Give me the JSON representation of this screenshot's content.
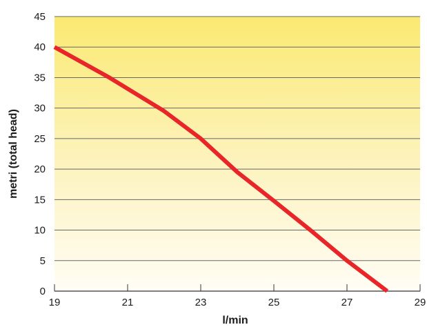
{
  "chart_data": {
    "type": "line",
    "title": "",
    "xlabel": "l/min",
    "ylabel": "metri (total head)",
    "xlim": [
      19,
      29
    ],
    "ylim": [
      0,
      45
    ],
    "x_ticks": [
      19,
      21,
      23,
      25,
      27,
      29
    ],
    "y_ticks": [
      0,
      5,
      10,
      15,
      20,
      25,
      30,
      35,
      40,
      45
    ],
    "grid": "horizontal",
    "legend": "none",
    "series": [
      {
        "x": [
          19,
          20.5,
          22,
          23,
          24,
          25,
          26,
          27,
          28.1
        ],
        "y": [
          40,
          35,
          29.5,
          25,
          19.5,
          14.8,
          10,
          5,
          0
        ]
      }
    ]
  },
  "colors": {
    "line": "#e8262a",
    "grid": "#666666",
    "bg_top": "#faea72",
    "bg_bottom": "#fffdf5"
  }
}
